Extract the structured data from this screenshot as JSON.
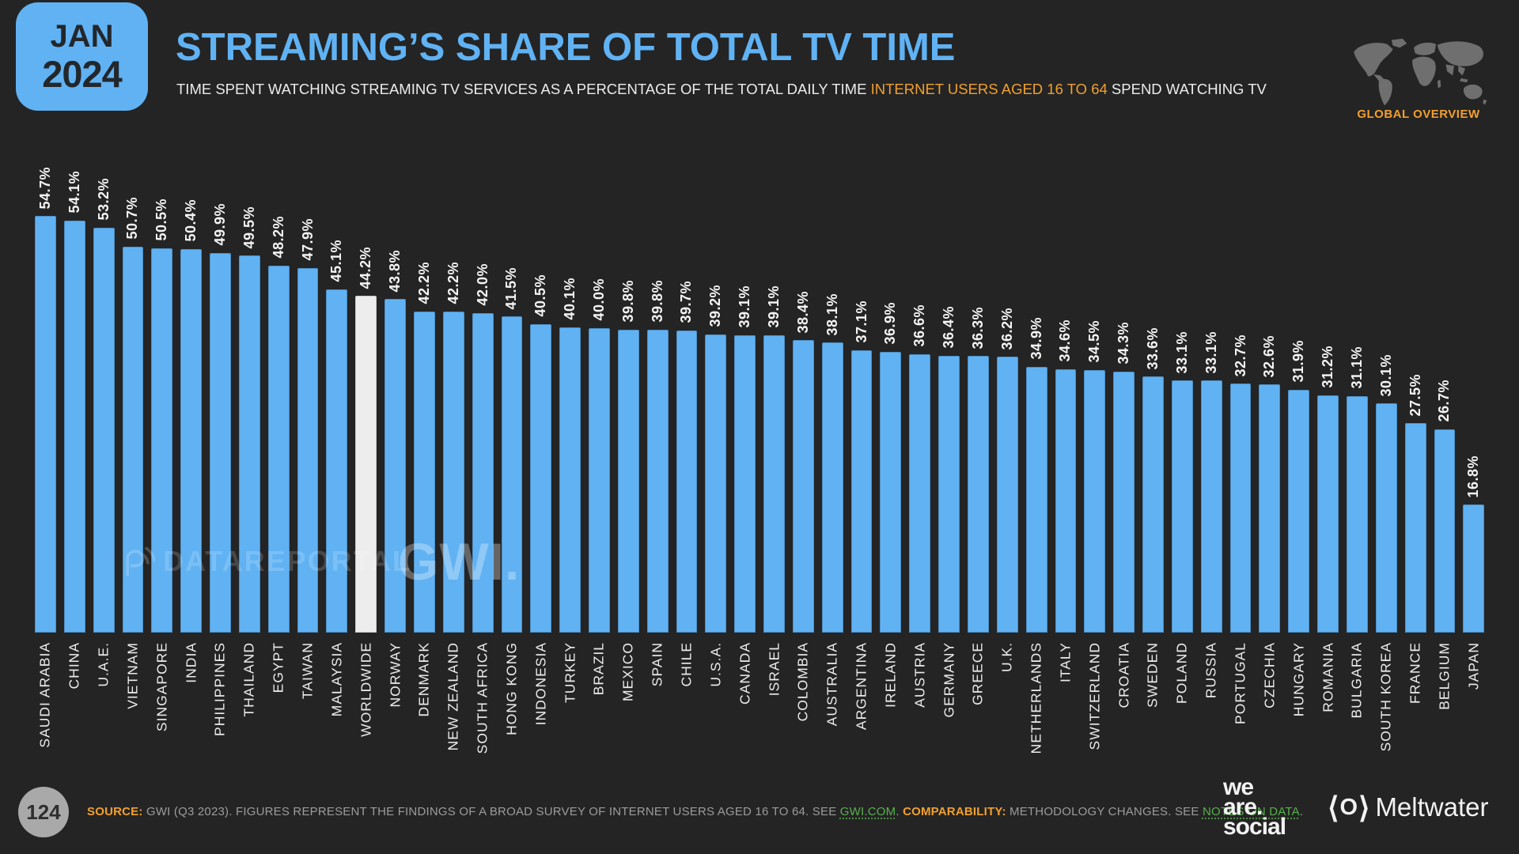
{
  "header": {
    "date_badge": {
      "month": "JAN",
      "year": "2024"
    },
    "title": "STREAMING’S SHARE OF TOTAL TV TIME",
    "subtitle_prefix": "TIME SPENT WATCHING STREAMING TV SERVICES AS A PERCENTAGE OF THE TOTAL DAILY TIME ",
    "subtitle_highlight": "INTERNET USERS AGED 16 TO 64",
    "subtitle_suffix": " SPEND WATCHING TV",
    "overview_label": "GLOBAL OVERVIEW"
  },
  "chart_data": {
    "type": "bar",
    "unit": "percent of total TV time",
    "title": "Streaming's share of total TV time, Jan 2024",
    "categories": [
      "SAUDI ARABIA",
      "CHINA",
      "U.A.E.",
      "VIETNAM",
      "SINGAPORE",
      "INDIA",
      "PHILIPPINES",
      "THAILAND",
      "EGYPT",
      "TAIWAN",
      "MALAYSIA",
      "WORLDWIDE",
      "NORWAY",
      "DENMARK",
      "NEW ZEALAND",
      "SOUTH AFRICA",
      "HONG KONG",
      "INDONESIA",
      "TURKEY",
      "BRAZIL",
      "MEXICO",
      "SPAIN",
      "CHILE",
      "U.S.A.",
      "CANADA",
      "ISRAEL",
      "COLOMBIA",
      "AUSTRALIA",
      "ARGENTINA",
      "IRELAND",
      "AUSTRIA",
      "GERMANY",
      "GREECE",
      "U.K.",
      "NETHERLANDS",
      "ITALY",
      "SWITZERLAND",
      "CROATIA",
      "SWEDEN",
      "POLAND",
      "RUSSIA",
      "PORTUGAL",
      "CZECHIA",
      "HUNGARY",
      "ROMANIA",
      "BULGARIA",
      "SOUTH KOREA",
      "FRANCE",
      "BELGIUM",
      "JAPAN"
    ],
    "values": [
      54.7,
      54.1,
      53.2,
      50.7,
      50.5,
      50.4,
      49.9,
      49.5,
      48.2,
      47.9,
      45.1,
      44.2,
      43.8,
      42.2,
      42.2,
      42.0,
      41.5,
      40.5,
      40.1,
      40.0,
      39.8,
      39.8,
      39.7,
      39.2,
      39.1,
      39.1,
      38.4,
      38.1,
      37.1,
      36.9,
      36.6,
      36.4,
      36.3,
      36.2,
      34.9,
      34.6,
      34.5,
      34.3,
      33.6,
      33.1,
      33.1,
      32.7,
      32.6,
      31.9,
      31.2,
      31.1,
      30.1,
      27.5,
      26.7,
      16.8
    ],
    "value_labels": [
      "54.7%",
      "54.1%",
      "53.2%",
      "50.7%",
      "50.5%",
      "50.4%",
      "49.9%",
      "49.5%",
      "48.2%",
      "47.9%",
      "45.1%",
      "44.2%",
      "43.8%",
      "42.2%",
      "42.2%",
      "42.0%",
      "41.5%",
      "40.5%",
      "40.1%",
      "40.0%",
      "39.8%",
      "39.8%",
      "39.7%",
      "39.2%",
      "39.1%",
      "39.1%",
      "38.4%",
      "38.1%",
      "37.1%",
      "36.9%",
      "36.6%",
      "36.4%",
      "36.3%",
      "36.2%",
      "34.9%",
      "34.6%",
      "34.5%",
      "34.3%",
      "33.6%",
      "33.1%",
      "33.1%",
      "32.7%",
      "32.6%",
      "31.9%",
      "31.2%",
      "31.1%",
      "30.1%",
      "27.5%",
      "26.7%",
      "16.8%"
    ],
    "highlight_category": "WORLDWIDE",
    "bar_color": "#60B2F3",
    "highlight_color": "#EDEDED",
    "ylim": [
      0,
      57
    ],
    "grid": false,
    "legend": "none",
    "orientation": "vertical",
    "value_labels_rotated": true
  },
  "watermarks": {
    "datareportal": "DATAREPORTAL",
    "gwi": "GWI."
  },
  "footer": {
    "page_number": "124",
    "source_label": "SOURCE:",
    "source_text": " GWI (Q3 2023). FIGURES REPRESENT THE FINDINGS OF A BROAD SURVEY OF INTERNET USERS AGED 16 TO 64. SEE ",
    "source_link": "GWI.COM",
    "source_after": ". ",
    "comparability_label": "COMPARABILITY:",
    "comparability_text": " METHODOLOGY CHANGES. SEE ",
    "comparability_link": "NOTES ON DATA",
    "comparability_after": ".",
    "logo_lines": [
      "we",
      "are.",
      "social"
    ],
    "meltwater_mark": "⟨O⟩",
    "meltwater_word": "Meltwater"
  },
  "colors": {
    "background": "#242424",
    "accent_blue": "#60B2F3",
    "highlight_bar": "#EDEDED",
    "accent_orange": "#F2A02E",
    "link_green": "#58B14E",
    "text_gray": "#9C9C9C"
  }
}
